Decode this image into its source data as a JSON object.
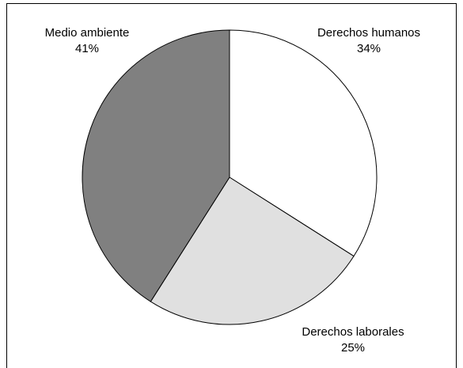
{
  "chart_data": {
    "type": "pie",
    "categories": [
      "Derechos humanos",
      "Derechos laborales",
      "Medio ambiente"
    ],
    "values": [
      34,
      25,
      41
    ],
    "value_labels": [
      "34%",
      "25%",
      "41%"
    ],
    "colors": [
      "#ffffff",
      "#e0e0e0",
      "#808080"
    ]
  }
}
